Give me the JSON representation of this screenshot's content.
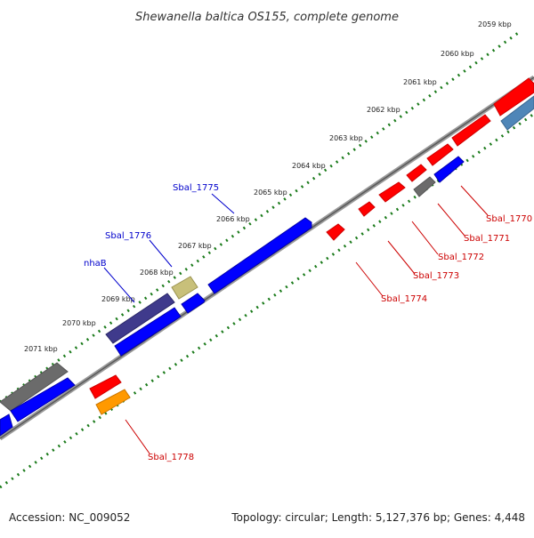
{
  "title": "Shewanella baltica OS155, complete genome",
  "footer": {
    "accession": "Accession: NC_009052",
    "topology": "Topology: circular; Length: 5,127,376 bp; Genes: 4,448"
  },
  "scale_ticks": [
    "2059 kbp",
    "2060 kbp",
    "2061 kbp",
    "2062 kbp",
    "2063 kbp",
    "2064 kbp",
    "2065 kbp",
    "2066 kbp",
    "2067 kbp",
    "2068 kbp",
    "2069 kbp",
    "2070 kbp",
    "2071 kbp"
  ],
  "gene_labels": [
    {
      "name": "Sbal_1775",
      "color": "#0000cc"
    },
    {
      "name": "Sbal_1776",
      "color": "#0000cc"
    },
    {
      "name": "nhaB",
      "color": "#0000cc"
    },
    {
      "name": "Sbal_1770",
      "color": "#cc0000"
    },
    {
      "name": "Sbal_1771",
      "color": "#cc0000"
    },
    {
      "name": "Sbal_1772",
      "color": "#cc0000"
    },
    {
      "name": "Sbal_1773",
      "color": "#cc0000"
    },
    {
      "name": "Sbal_1774",
      "color": "#cc0000"
    },
    {
      "name": "Sbal_1778",
      "color": "#cc0000"
    }
  ],
  "colors": {
    "forward_strand": "#0000ff",
    "reverse_strand": "#ff0000",
    "backbone": "#7a7a7a",
    "scale_dots": "#1a7a1a",
    "dark_purple_gene": "#3f3a8c",
    "khaki_gene": "#c8c07a",
    "gray_gene": "#6b6b6b",
    "orange_gene": "#ff9900",
    "steelblue_gene": "#4f86b8"
  }
}
